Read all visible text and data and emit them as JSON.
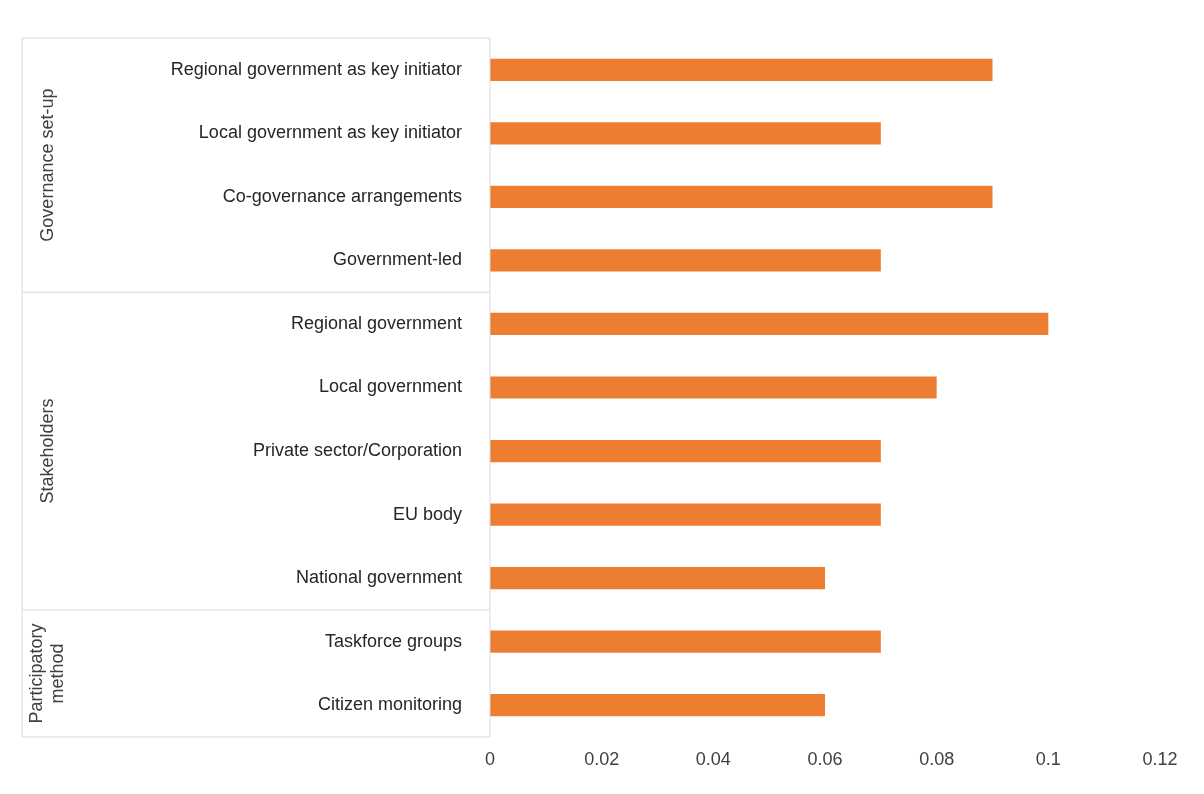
{
  "chart_data": {
    "type": "bar",
    "orientation": "horizontal",
    "categories": [
      "Regional government as key initiator",
      "Local government as key initiator",
      "Co-governance arrangements",
      "Government-led",
      "Regional government",
      "Local government",
      "Private sector/Corporation",
      "EU body",
      "National government",
      "Taskforce groups",
      "Citizen monitoring"
    ],
    "values": [
      0.09,
      0.07,
      0.09,
      0.07,
      0.1,
      0.08,
      0.07,
      0.07,
      0.06,
      0.07,
      0.06
    ],
    "color": "#ed7d31",
    "xlim": [
      0,
      0.12
    ],
    "xticks": [
      0,
      0.02,
      0.04,
      0.06,
      0.08,
      0.1,
      0.12
    ],
    "grid": false,
    "legend": false,
    "annotations": [
      "Governance set-up",
      "Stakeholders",
      "Participatory method"
    ]
  }
}
